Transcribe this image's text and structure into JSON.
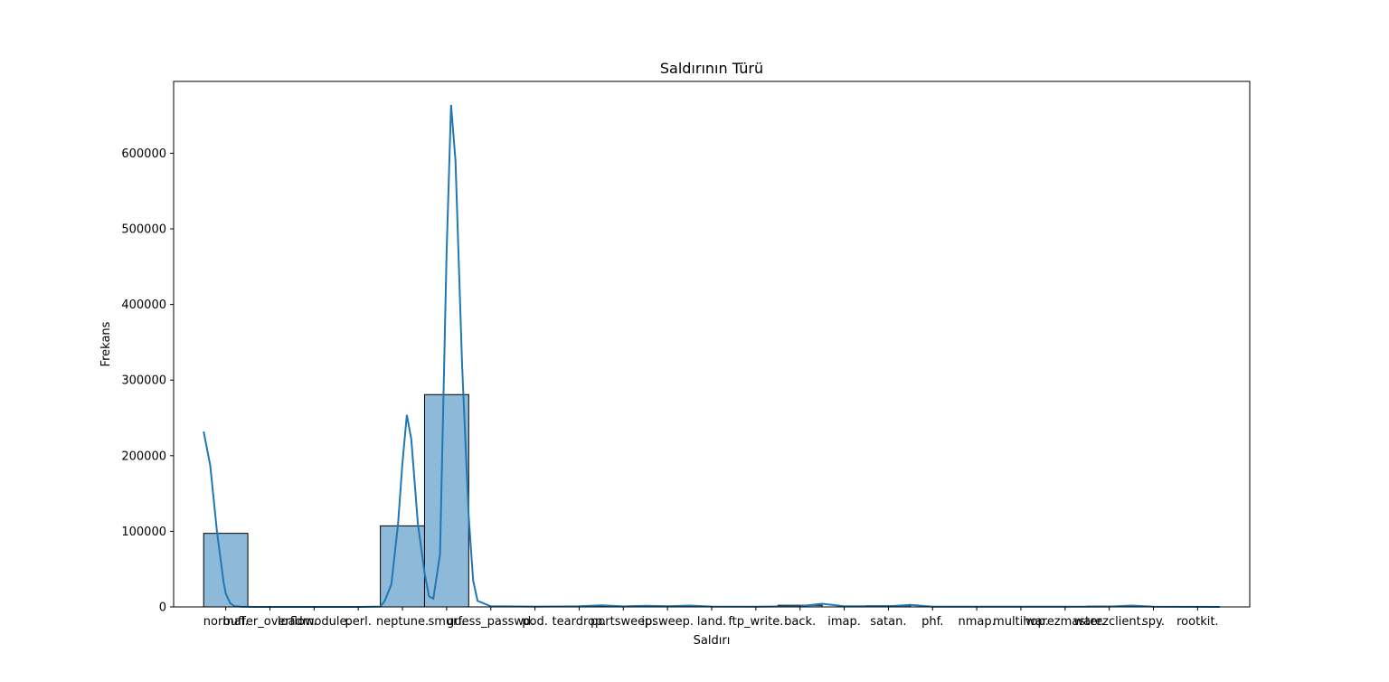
{
  "chart_data": {
    "type": "bar",
    "title": "Saldırının Türü",
    "xlabel": "Saldırı",
    "ylabel": "Frekans",
    "ylim": [
      0,
      695000
    ],
    "yticks": [
      0,
      100000,
      200000,
      300000,
      400000,
      500000,
      600000
    ],
    "ytick_labels": [
      "0",
      "100000",
      "200000",
      "300000",
      "400000",
      "500000",
      "600000"
    ],
    "categories": [
      "normal.",
      "buffer_overflow.",
      "loadmodule.",
      "perl.",
      "neptune.",
      "smurf.",
      "guess_passwd.",
      "pod.",
      "teardrop.",
      "portsweep.",
      "ipsweep.",
      "land.",
      "ftp_write.",
      "back.",
      "imap.",
      "satan.",
      "phf.",
      "nmap.",
      "multihop.",
      "warezmaster.",
      "warezclient.",
      "spy.",
      "rootkit."
    ],
    "bins": [
      {
        "start": -0.5,
        "end": 0.5,
        "value": 97300
      },
      {
        "start": 0.5,
        "end": 1.5,
        "value": 30
      },
      {
        "start": 1.5,
        "end": 2.5,
        "value": 9
      },
      {
        "start": 2.5,
        "end": 3.5,
        "value": 3
      },
      {
        "start": 3.5,
        "end": 4.5,
        "value": 107200
      },
      {
        "start": 4.5,
        "end": 5.5,
        "value": 280800
      },
      {
        "start": 5.5,
        "end": 6.5,
        "value": 53
      },
      {
        "start": 6.5,
        "end": 7.5,
        "value": 264
      },
      {
        "start": 7.5,
        "end": 8.5,
        "value": 979
      },
      {
        "start": 8.5,
        "end": 9.5,
        "value": 1040
      },
      {
        "start": 9.5,
        "end": 10.5,
        "value": 1247
      },
      {
        "start": 10.5,
        "end": 11.5,
        "value": 21
      },
      {
        "start": 11.5,
        "end": 12.5,
        "value": 8
      },
      {
        "start": 12.5,
        "end": 13.5,
        "value": 2203
      },
      {
        "start": 13.5,
        "end": 14.5,
        "value": 12
      },
      {
        "start": 14.5,
        "end": 15.5,
        "value": 1589
      },
      {
        "start": 15.5,
        "end": 16.5,
        "value": 4
      },
      {
        "start": 16.5,
        "end": 17.5,
        "value": 231
      },
      {
        "start": 17.5,
        "end": 18.5,
        "value": 7
      },
      {
        "start": 18.5,
        "end": 19.5,
        "value": 20
      },
      {
        "start": 19.5,
        "end": 20.5,
        "value": 1020
      },
      {
        "start": 20.5,
        "end": 21.5,
        "value": 2
      },
      {
        "start": 21.5,
        "end": 22.5,
        "value": 10
      }
    ],
    "kde": {
      "x": [
        -0.5,
        -0.35,
        -0.2,
        -0.05,
        0.0,
        0.1,
        0.2,
        0.35,
        0.5,
        0.7,
        1.0,
        2.0,
        3.0,
        3.5,
        3.6,
        3.75,
        3.9,
        4.0,
        4.1,
        4.2,
        4.35,
        4.5,
        4.6,
        4.7,
        4.85,
        5.0,
        5.1,
        5.2,
        5.35,
        5.5,
        5.6,
        5.7,
        6.0,
        7.0,
        8.0,
        8.5,
        9.0,
        9.5,
        10.0,
        10.5,
        11.0,
        12.0,
        13.0,
        13.5,
        14.0,
        15.0,
        15.5,
        16.0,
        17.0,
        18.0,
        19.0,
        20.0,
        20.5,
        21.0,
        22.0,
        22.5
      ],
      "y": [
        232000,
        187000,
        100000,
        33000,
        18000,
        5000,
        1000,
        300,
        100,
        50,
        30,
        20,
        50,
        500,
        8000,
        30000,
        110000,
        190000,
        254000,
        222000,
        110000,
        45000,
        14000,
        11000,
        70000,
        470000,
        664000,
        590000,
        320000,
        120000,
        35000,
        8000,
        800,
        500,
        800,
        2000,
        700,
        1600,
        800,
        1800,
        500,
        200,
        800,
        4200,
        900,
        800,
        2800,
        400,
        200,
        400,
        200,
        500,
        1800,
        300,
        100,
        50
      ]
    },
    "bar_color": "#8ebad9",
    "bar_edge_color": "#000000",
    "kde_color": "#1f77b4",
    "grid": false,
    "legend": "none"
  }
}
